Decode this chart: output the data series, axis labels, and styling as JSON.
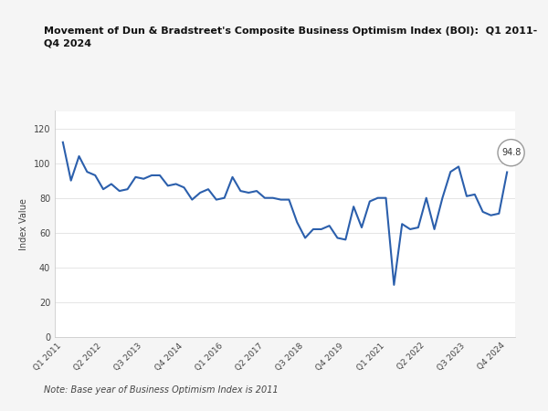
{
  "title_line1": "Movement of Dun & Bradstreet's Composite Business Optimism Index (BOI):  Q1 2011-",
  "title_line2": "Q4 2024",
  "ylabel": "Index Value",
  "note": "Note: Base year of Business Optimism Index is 2011",
  "line_color": "#2b5fac",
  "background_color": "#f5f5f5",
  "plot_bg_color": "#ffffff",
  "ylim": [
    0,
    130
  ],
  "yticks": [
    0,
    20,
    40,
    60,
    80,
    100,
    120
  ],
  "last_value": 94.8,
  "xtick_positions": [
    0,
    5,
    10,
    15,
    20,
    25,
    30,
    35,
    40,
    45,
    50,
    55
  ],
  "xtick_labels": [
    "Q1 2011",
    "Q2 2012",
    "Q3 2013",
    "Q4 2014",
    "Q1 2016",
    "Q2 2017",
    "Q3 2018",
    "Q4 2019",
    "Q1 2021",
    "Q2 2022",
    "Q3 2023",
    "Q4 2024"
  ],
  "values": [
    112,
    90,
    104,
    95,
    93,
    85,
    88,
    84,
    85,
    92,
    91,
    93,
    93,
    87,
    88,
    86,
    79,
    83,
    85,
    79,
    80,
    92,
    84,
    83,
    84,
    80,
    80,
    79,
    79,
    66,
    57,
    62,
    62,
    64,
    57,
    56,
    75,
    63,
    78,
    80,
    80,
    30,
    65,
    62,
    63,
    80,
    62,
    80,
    95,
    98,
    81,
    82,
    72,
    70,
    71,
    94.8
  ]
}
